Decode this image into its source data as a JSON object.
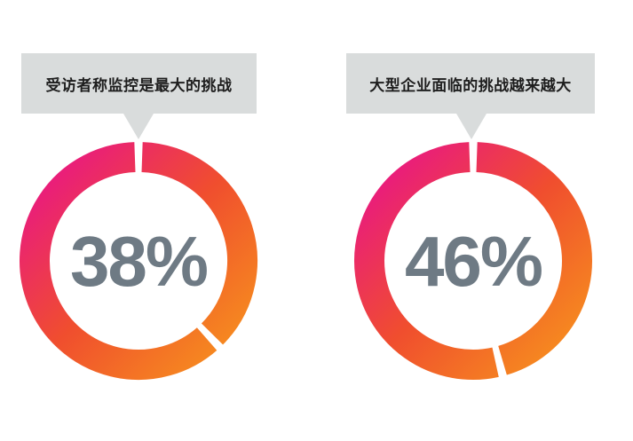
{
  "chart_data": [
    {
      "type": "pie",
      "variant": "donut",
      "title": "受访者称监控是最大的挑战",
      "value": 38,
      "label": "38%",
      "gradient": [
        "#e8128c",
        "#f04e2e",
        "#f7941d"
      ]
    },
    {
      "type": "pie",
      "variant": "donut",
      "title": "大型企业面临的挑战越来越大",
      "value": 46,
      "label": "46%",
      "gradient": [
        "#e8128c",
        "#f04e2e",
        "#f7941d"
      ]
    }
  ],
  "colors": {
    "callout_bg": "#d9dcdc",
    "percent_text": "#6e7a84"
  }
}
